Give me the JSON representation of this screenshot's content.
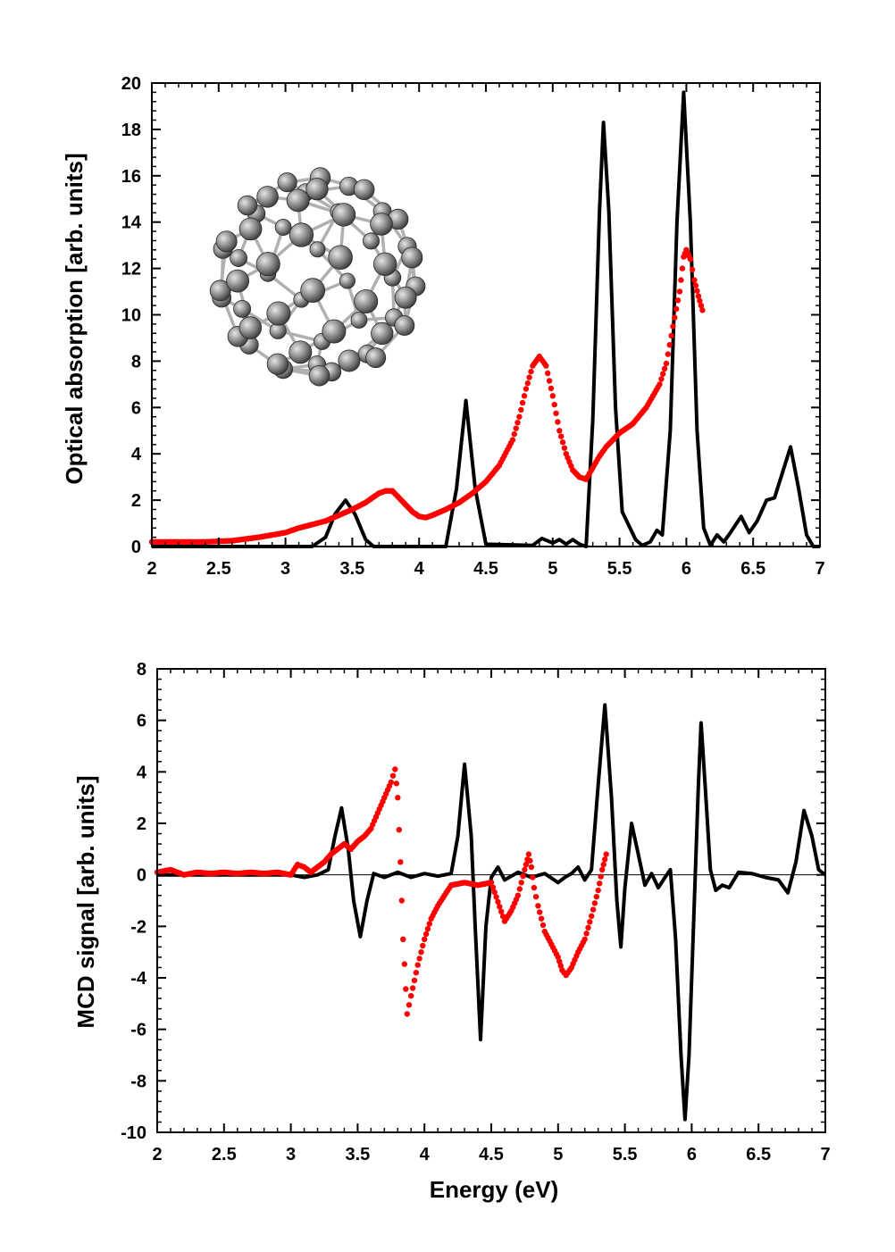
{
  "chart_data": [
    {
      "type": "line",
      "title": "",
      "xlabel": "",
      "ylabel": "Optical absorption [arb. units]",
      "xlim": [
        2,
        7
      ],
      "ylim": [
        0,
        20
      ],
      "xticks": [
        "2",
        "2.5",
        "3",
        "3.5",
        "4",
        "4.5",
        "5",
        "5.5",
        "6",
        "6.5",
        "7"
      ],
      "yticks": [
        "0",
        "2",
        "4",
        "6",
        "8",
        "10",
        "12",
        "14",
        "16",
        "18",
        "20"
      ],
      "grid": false,
      "legend": "none",
      "inset_image": "c60-fullerene-molecule",
      "series": [
        {
          "style": "solid-line",
          "color": "#000000",
          "points": [
            [
              2.0,
              0
            ],
            [
              3.2,
              0
            ],
            [
              3.3,
              0.4
            ],
            [
              3.37,
              1.4
            ],
            [
              3.45,
              2.0
            ],
            [
              3.52,
              1.4
            ],
            [
              3.6,
              0.3
            ],
            [
              3.66,
              0
            ],
            [
              4.2,
              0
            ],
            [
              4.28,
              2.5
            ],
            [
              4.35,
              6.3
            ],
            [
              4.42,
              2.5
            ],
            [
              4.5,
              0.1
            ],
            [
              4.85,
              0.05
            ],
            [
              4.92,
              0.35
            ],
            [
              5.0,
              0.15
            ],
            [
              5.05,
              0.3
            ],
            [
              5.1,
              0.1
            ],
            [
              5.15,
              0.3
            ],
            [
              5.2,
              0.1
            ],
            [
              5.25,
              0
            ],
            [
              5.3,
              5.5
            ],
            [
              5.35,
              14.5
            ],
            [
              5.38,
              18.3
            ],
            [
              5.42,
              14.5
            ],
            [
              5.47,
              6.0
            ],
            [
              5.52,
              1.5
            ],
            [
              5.57,
              0.9
            ],
            [
              5.62,
              0.3
            ],
            [
              5.67,
              0.05
            ],
            [
              5.73,
              0.2
            ],
            [
              5.78,
              0.7
            ],
            [
              5.82,
              0.5
            ],
            [
              5.88,
              5.0
            ],
            [
              5.93,
              14.0
            ],
            [
              5.98,
              19.6
            ],
            [
              6.03,
              14.0
            ],
            [
              6.08,
              5.0
            ],
            [
              6.13,
              0.8
            ],
            [
              6.18,
              0.05
            ],
            [
              6.23,
              0.5
            ],
            [
              6.28,
              0.2
            ],
            [
              6.33,
              0.6
            ],
            [
              6.41,
              1.3
            ],
            [
              6.47,
              0.6
            ],
            [
              6.53,
              1.1
            ],
            [
              6.6,
              2.0
            ],
            [
              6.66,
              2.1
            ],
            [
              6.72,
              3.2
            ],
            [
              6.78,
              4.3
            ],
            [
              6.84,
              2.5
            ],
            [
              6.9,
              0.5
            ],
            [
              6.95,
              0
            ],
            [
              7.0,
              0
            ]
          ]
        },
        {
          "style": "dots",
          "color": "#ff0000",
          "points": [
            [
              2.0,
              0.2
            ],
            [
              2.2,
              0.2
            ],
            [
              2.4,
              0.2
            ],
            [
              2.6,
              0.25
            ],
            [
              2.8,
              0.4
            ],
            [
              3.0,
              0.6
            ],
            [
              3.1,
              0.8
            ],
            [
              3.2,
              0.95
            ],
            [
              3.3,
              1.1
            ],
            [
              3.4,
              1.35
            ],
            [
              3.5,
              1.6
            ],
            [
              3.6,
              1.9
            ],
            [
              3.7,
              2.3
            ],
            [
              3.75,
              2.4
            ],
            [
              3.8,
              2.4
            ],
            [
              3.85,
              2.1
            ],
            [
              3.9,
              1.8
            ],
            [
              3.95,
              1.5
            ],
            [
              4.0,
              1.3
            ],
            [
              4.05,
              1.25
            ],
            [
              4.1,
              1.35
            ],
            [
              4.2,
              1.6
            ],
            [
              4.3,
              1.9
            ],
            [
              4.4,
              2.3
            ],
            [
              4.5,
              2.8
            ],
            [
              4.6,
              3.5
            ],
            [
              4.7,
              4.6
            ],
            [
              4.75,
              5.6
            ],
            [
              4.8,
              6.8
            ],
            [
              4.85,
              7.8
            ],
            [
              4.9,
              8.2
            ],
            [
              4.95,
              7.8
            ],
            [
              5.0,
              6.5
            ],
            [
              5.05,
              5.0
            ],
            [
              5.1,
              4.0
            ],
            [
              5.15,
              3.3
            ],
            [
              5.2,
              3.0
            ],
            [
              5.25,
              2.9
            ],
            [
              5.3,
              3.4
            ],
            [
              5.35,
              3.9
            ],
            [
              5.4,
              4.3
            ],
            [
              5.5,
              4.9
            ],
            [
              5.6,
              5.3
            ],
            [
              5.7,
              6.0
            ],
            [
              5.8,
              7.0
            ],
            [
              5.85,
              7.9
            ],
            [
              5.9,
              9.5
            ],
            [
              5.95,
              11.0
            ],
            [
              5.98,
              12.5
            ],
            [
              6.0,
              12.8
            ],
            [
              6.03,
              12.4
            ],
            [
              6.06,
              11.5
            ],
            [
              6.09,
              10.8
            ],
            [
              6.12,
              10.2
            ]
          ]
        }
      ]
    },
    {
      "type": "line",
      "title": "",
      "xlabel": "Energy (eV)",
      "ylabel": "MCD signal [arb. units]",
      "xlim": [
        2,
        7
      ],
      "ylim": [
        -10,
        8
      ],
      "xticks": [
        "2",
        "2.5",
        "3",
        "3.5",
        "4",
        "4.5",
        "5",
        "5.5",
        "6",
        "6.5",
        "7"
      ],
      "yticks": [
        "-10",
        "-8",
        "-6",
        "-4",
        "-2",
        "0",
        "2",
        "4",
        "6",
        "8"
      ],
      "grid": false,
      "legend": "none",
      "zero_line": true,
      "series": [
        {
          "style": "solid-line",
          "color": "#000000",
          "points": [
            [
              2.0,
              0
            ],
            [
              3.0,
              0
            ],
            [
              3.1,
              -0.1
            ],
            [
              3.2,
              0
            ],
            [
              3.28,
              0.2
            ],
            [
              3.33,
              1.5
            ],
            [
              3.38,
              2.6
            ],
            [
              3.43,
              1.0
            ],
            [
              3.47,
              -1.0
            ],
            [
              3.52,
              -2.4
            ],
            [
              3.57,
              -1.0
            ],
            [
              3.62,
              0.05
            ],
            [
              3.7,
              -0.1
            ],
            [
              3.8,
              0.1
            ],
            [
              3.9,
              -0.1
            ],
            [
              4.0,
              0.05
            ],
            [
              4.1,
              -0.05
            ],
            [
              4.2,
              0.05
            ],
            [
              4.25,
              1.5
            ],
            [
              4.3,
              4.3
            ],
            [
              4.35,
              1.5
            ],
            [
              4.38,
              -2.0
            ],
            [
              4.42,
              -6.4
            ],
            [
              4.46,
              -2.0
            ],
            [
              4.5,
              -0.1
            ],
            [
              4.55,
              0.3
            ],
            [
              4.6,
              -0.2
            ],
            [
              4.7,
              0.1
            ],
            [
              4.8,
              -0.1
            ],
            [
              4.9,
              0.05
            ],
            [
              5.0,
              -0.3
            ],
            [
              5.05,
              -0.1
            ],
            [
              5.1,
              0.05
            ],
            [
              5.15,
              0.3
            ],
            [
              5.2,
              -0.2
            ],
            [
              5.25,
              0.2
            ],
            [
              5.3,
              3.5
            ],
            [
              5.35,
              6.6
            ],
            [
              5.4,
              3.0
            ],
            [
              5.44,
              -1.0
            ],
            [
              5.47,
              -2.8
            ],
            [
              5.5,
              -0.5
            ],
            [
              5.55,
              2.0
            ],
            [
              5.6,
              0.8
            ],
            [
              5.65,
              -0.4
            ],
            [
              5.7,
              0.05
            ],
            [
              5.75,
              -0.5
            ],
            [
              5.8,
              -0.1
            ],
            [
              5.84,
              0.2
            ],
            [
              5.88,
              -2.5
            ],
            [
              5.92,
              -7.0
            ],
            [
              5.95,
              -9.5
            ],
            [
              5.98,
              -7.0
            ],
            [
              6.02,
              -1.0
            ],
            [
              6.05,
              3.5
            ],
            [
              6.07,
              5.9
            ],
            [
              6.1,
              3.5
            ],
            [
              6.14,
              0.2
            ],
            [
              6.18,
              -0.6
            ],
            [
              6.23,
              -0.4
            ],
            [
              6.28,
              -0.5
            ],
            [
              6.35,
              0.1
            ],
            [
              6.45,
              0.05
            ],
            [
              6.55,
              -0.1
            ],
            [
              6.65,
              -0.2
            ],
            [
              6.72,
              -0.7
            ],
            [
              6.78,
              0.5
            ],
            [
              6.84,
              2.5
            ],
            [
              6.9,
              1.5
            ],
            [
              6.95,
              0.2
            ],
            [
              7.0,
              0
            ]
          ]
        },
        {
          "style": "dots",
          "color": "#ff0000",
          "points": [
            [
              2.0,
              0.1
            ],
            [
              2.1,
              0.2
            ],
            [
              2.2,
              0
            ],
            [
              2.3,
              0.1
            ],
            [
              2.4,
              0.05
            ],
            [
              2.5,
              0.1
            ],
            [
              2.6,
              0.05
            ],
            [
              2.7,
              0.1
            ],
            [
              2.8,
              0.05
            ],
            [
              2.9,
              0.1
            ],
            [
              3.0,
              0
            ],
            [
              3.05,
              0.4
            ],
            [
              3.1,
              0.3
            ],
            [
              3.15,
              0.1
            ],
            [
              3.2,
              0.3
            ],
            [
              3.25,
              0.5
            ],
            [
              3.3,
              0.8
            ],
            [
              3.35,
              1.0
            ],
            [
              3.4,
              1.2
            ],
            [
              3.45,
              1.0
            ],
            [
              3.5,
              1.3
            ],
            [
              3.55,
              1.5
            ],
            [
              3.6,
              1.8
            ],
            [
              3.65,
              2.4
            ],
            [
              3.7,
              3.0
            ],
            [
              3.75,
              3.6
            ],
            [
              3.78,
              4.1
            ],
            [
              3.8,
              3.0
            ],
            [
              3.82,
              0.5
            ],
            [
              3.84,
              -2.5
            ],
            [
              3.87,
              -5.4
            ],
            [
              3.9,
              -4.7
            ],
            [
              3.95,
              -3.5
            ],
            [
              4.0,
              -2.5
            ],
            [
              4.05,
              -1.7
            ],
            [
              4.1,
              -1.2
            ],
            [
              4.15,
              -0.8
            ],
            [
              4.2,
              -0.4
            ],
            [
              4.3,
              -0.3
            ],
            [
              4.4,
              -0.4
            ],
            [
              4.5,
              -0.3
            ],
            [
              4.6,
              -1.8
            ],
            [
              4.65,
              -1.4
            ],
            [
              4.7,
              -0.8
            ],
            [
              4.75,
              0.2
            ],
            [
              4.78,
              0.8
            ],
            [
              4.8,
              0.3
            ],
            [
              4.82,
              -0.5
            ],
            [
              4.85,
              -1.2
            ],
            [
              4.9,
              -2.2
            ],
            [
              4.95,
              -2.7
            ],
            [
              5.0,
              -3.2
            ],
            [
              5.03,
              -3.7
            ],
            [
              5.06,
              -3.9
            ],
            [
              5.1,
              -3.6
            ],
            [
              5.15,
              -3.0
            ],
            [
              5.2,
              -2.5
            ],
            [
              5.25,
              -1.6
            ],
            [
              5.3,
              -0.6
            ],
            [
              5.33,
              0.2
            ],
            [
              5.36,
              0.8
            ]
          ]
        }
      ]
    }
  ]
}
